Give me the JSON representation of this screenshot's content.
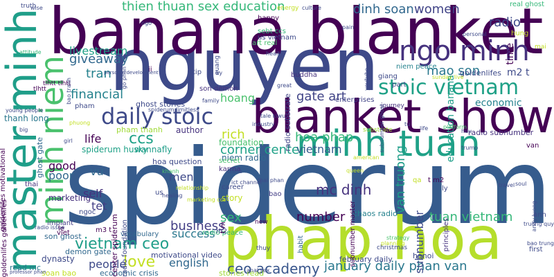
{
  "palette": {
    "dark_purple": "#440154",
    "indigo": "#46327e",
    "blue": "#365c8d",
    "teal": "#277f8e",
    "green_teal": "#1fa187",
    "green": "#4ac16d",
    "lime": "#a0da39",
    "yellow": "#c2df23"
  },
  "words": [
    {
      "text": "spiderum",
      "color": "#365c8d"
    },
    {
      "text": "nguyen",
      "color": "#3e4a89"
    },
    {
      "text": "banana blanket",
      "color": "#440154"
    },
    {
      "text": "phap hoa",
      "color": "#b5de2b"
    },
    {
      "text": "blanket show",
      "color": "#440154"
    },
    {
      "text": "minh tuan",
      "color": "#1fa187"
    },
    {
      "text": "master minh",
      "color": "#1f9e89"
    },
    {
      "text": "minh niem",
      "color": "#4ac16d"
    },
    {
      "text": "ngo minh",
      "color": "#46327e"
    },
    {
      "text": "daily stoic",
      "color": "#3e4a89"
    },
    {
      "text": "stoic vietnam",
      "color": "#1fa187"
    },
    {
      "text": "thien thuan sex education",
      "color": "#35b779"
    },
    {
      "text": "dinh soan",
      "color": "#31688e"
    },
    {
      "text": "women",
      "color": "#414487"
    },
    {
      "text": "radio",
      "color": "#3e4a89"
    },
    {
      "text": "real ghost",
      "color": "#35b779"
    },
    {
      "text": "livestream",
      "color": "#1fa187"
    },
    {
      "text": "giveaway",
      "color": "#31688e"
    },
    {
      "text": "tran",
      "color": "#26828e"
    },
    {
      "text": "mao son",
      "color": "#2a788e"
    },
    {
      "text": "financial",
      "color": "#26828e"
    },
    {
      "text": "hoang",
      "color": "#4ac16d"
    },
    {
      "text": "gate art",
      "color": "#414487"
    },
    {
      "text": "economic",
      "color": "#26828e"
    },
    {
      "text": "ccs",
      "color": "#1fa187"
    },
    {
      "text": "life",
      "color": "#440154"
    },
    {
      "text": "rich",
      "color": "#c2df23"
    },
    {
      "text": "hoa phap",
      "color": "#35b779"
    },
    {
      "text": "corner center",
      "color": "#1fa187"
    },
    {
      "text": "vietnam",
      "color": "#365c8d"
    },
    {
      "text": "vietnam ceo",
      "color": "#1f9e89"
    },
    {
      "text": "love",
      "color": "#c2df23"
    },
    {
      "text": "people",
      "color": "#3e4a89"
    },
    {
      "text": "english",
      "color": "#31688e"
    },
    {
      "text": "business",
      "color": "#433e85"
    },
    {
      "text": "success",
      "color": "#2a788e"
    },
    {
      "text": "sex",
      "color": "#35b779"
    },
    {
      "text": "number",
      "color": "#440154"
    },
    {
      "text": "mc dinh",
      "color": "#46327e"
    },
    {
      "text": "tuan vietnam",
      "color": "#35b779"
    },
    {
      "text": "ceo academy",
      "color": "#39568c"
    },
    {
      "text": "january daily phan van",
      "color": "#2a788e"
    },
    {
      "text": "van truong",
      "color": "#1f9e89"
    },
    {
      "text": "subnumber",
      "color": "#3e4a89"
    },
    {
      "text": "good",
      "color": "#440154"
    },
    {
      "text": "self",
      "color": "#46327e"
    },
    {
      "text": "vu",
      "color": "#31688e"
    },
    {
      "text": "men",
      "color": "#3e4a89"
    },
    {
      "text": "tet",
      "color": "#433e85"
    },
    {
      "text": "poor",
      "color": "#31688e"
    },
    {
      "text": "education banana",
      "color": "#1f9e89"
    },
    {
      "text": "time",
      "color": "#440154"
    },
    {
      "text": "m2 t",
      "color": "#3e4a89"
    },
    {
      "text": "goldenlifes",
      "color": "#3e4a89"
    },
    {
      "text": "foundation",
      "color": "#4ac16d"
    },
    {
      "text": "niem radio",
      "color": "#31688e"
    },
    {
      "text": "hoa question",
      "color": "#3e4a89"
    },
    {
      "text": "author",
      "color": "#46327e"
    },
    {
      "text": "pham thanh",
      "color": "#a0da39"
    },
    {
      "text": "thanh long",
      "color": "#2a788e"
    },
    {
      "text": "spiderum husky",
      "color": "#1fa187"
    },
    {
      "text": "wannafly",
      "color": "#1f9e89"
    },
    {
      "text": "ghost gate",
      "color": "#31688e"
    },
    {
      "text": "ghost stories",
      "color": "#3e4a89"
    },
    {
      "text": "marketing",
      "color": "#46327e"
    },
    {
      "text": "motivational video",
      "color": "#3e4a89"
    },
    {
      "text": "economic crisis",
      "color": "#31688e"
    },
    {
      "text": "stories read",
      "color": "#a0da39"
    },
    {
      "text": "february daily",
      "color": "#3e4a89"
    },
    {
      "text": "chaos radio",
      "color": "#26828e"
    },
    {
      "text": "hanoi",
      "color": "#3e4a89"
    },
    {
      "text": "radio subnumber",
      "color": "#46327e"
    },
    {
      "text": "dynasty",
      "color": "#3e4a89"
    },
    {
      "text": "read mc",
      "color": "#2a788e"
    },
    {
      "text": "son ghost",
      "color": "#31688e"
    },
    {
      "text": "implant",
      "color": "#433e85"
    },
    {
      "text": "demon gate",
      "color": "#31688e"
    },
    {
      "text": "soan bao",
      "color": "#c2df23"
    },
    {
      "text": "story",
      "color": "#c2df23"
    },
    {
      "text": "career",
      "color": "#3e4a89"
    },
    {
      "text": "karma",
      "color": "#46327e"
    },
    {
      "text": "secret",
      "color": "#4ac16d"
    },
    {
      "text": "vocabulary",
      "color": "#31688e"
    },
    {
      "text": "radio peace",
      "color": "#35b779"
    },
    {
      "text": "bao",
      "color": "#433e85"
    },
    {
      "text": "enterprises",
      "color": "#414487"
    },
    {
      "text": "buddha",
      "color": "#46327e"
    },
    {
      "text": "niem peace",
      "color": "#26828e"
    },
    {
      "text": "art real",
      "color": "#4ac16d"
    },
    {
      "text": "sebt ccs",
      "color": "#35b779"
    },
    {
      "text": "us vietnam",
      "color": "#3e4a89"
    },
    {
      "text": "happy",
      "color": "#440154"
    },
    {
      "text": "truth",
      "color": "#3e4a89"
    },
    {
      "text": "energy",
      "color": "#c2df23"
    },
    {
      "text": "hung",
      "color": "#c2df23"
    },
    {
      "text": "first",
      "color": "#3e4a89"
    },
    {
      "text": "anh",
      "color": "#3e4a89"
    },
    {
      "text": "principles",
      "color": "#46327e"
    },
    {
      "text": "subnumber master",
      "color": "#440154"
    },
    {
      "text": "radio substrate",
      "color": "#414487"
    },
    {
      "text": "son demon",
      "color": "#46327e"
    },
    {
      "text": "pham",
      "color": "#3e4a89"
    },
    {
      "text": "tlhtt",
      "color": "#440154"
    },
    {
      "text": "tlhtt tlhtt",
      "color": "#440154"
    },
    {
      "text": "goldenlifes motivational",
      "color": "#440154"
    },
    {
      "text": "goldenlifes goldenlifes",
      "color": "#440154"
    },
    {
      "text": "center spiderum",
      "color": "#440154"
    },
    {
      "text": "radio foundation",
      "color": "#3e4a89"
    },
    {
      "text": "habit",
      "color": "#31688e"
    },
    {
      "text": "ngoc",
      "color": "#3e4a89"
    },
    {
      "text": "viet",
      "color": "#440154"
    },
    {
      "text": "tip",
      "color": "#3e4a89"
    },
    {
      "text": "us",
      "color": "#3e4a89"
    },
    {
      "text": "m3 t",
      "color": "#440154"
    },
    {
      "text": "new",
      "color": "#440154"
    },
    {
      "text": "ly",
      "color": "#3e4a89"
    },
    {
      "text": "t m2",
      "color": "#440154"
    },
    {
      "text": "qa",
      "color": "#c2df23"
    },
    {
      "text": "thai",
      "color": "#46327e"
    },
    {
      "text": "le",
      "color": "#440154"
    },
    {
      "text": "ii",
      "color": "#440154"
    },
    {
      "text": "giang",
      "color": "#3e4a89"
    },
    {
      "text": "part",
      "color": "#3e4a89"
    },
    {
      "text": "thuy",
      "color": "#3e4a89"
    },
    {
      "text": "journey",
      "color": "#46327e"
    },
    {
      "text": "m2",
      "color": "#3e4a89"
    },
    {
      "text": "t m",
      "color": "#440154"
    },
    {
      "text": "mai",
      "color": "#c2df23"
    },
    {
      "text": "van",
      "color": "#440154"
    },
    {
      "text": "substrate",
      "color": "#a0da39"
    },
    {
      "text": "christmas",
      "color": "#3e4a89"
    },
    {
      "text": "quang",
      "color": "#3e4a89"
    },
    {
      "text": "family",
      "color": "#3e4a89"
    },
    {
      "text": "industry",
      "color": "#3e4a89"
    },
    {
      "text": "spiderum limitless",
      "color": "#3e4a89"
    },
    {
      "text": "tale kiwu",
      "color": "#3e4a89"
    },
    {
      "text": "young people",
      "color": "#3e4a89"
    },
    {
      "text": "personal development",
      "color": "#3e4a89"
    },
    {
      "text": "wise",
      "color": "#3e4a89"
    },
    {
      "text": "ngo",
      "color": "#3e4a89"
    },
    {
      "text": "culture",
      "color": "#3e4a89"
    },
    {
      "text": "pain",
      "color": "#3e4a89"
    },
    {
      "text": "personal",
      "color": "#3e4a89"
    },
    {
      "text": "health",
      "color": "#3e4a89"
    },
    {
      "text": "attitude",
      "color": "#35b779"
    },
    {
      "text": "great",
      "color": "#3e4a89"
    },
    {
      "text": "youtube",
      "color": "#3e4a89"
    },
    {
      "text": "platform",
      "color": "#4ac16d"
    },
    {
      "text": "huu",
      "color": "#3e4a89"
    },
    {
      "text": "trump",
      "color": "#3e4a89"
    },
    {
      "text": "china",
      "color": "#3e4a89"
    },
    {
      "text": "khanh",
      "color": "#4ac16d"
    },
    {
      "text": "american",
      "color": "#c2df23"
    },
    {
      "text": "queen",
      "color": "#c2df23"
    },
    {
      "text": "thai phan",
      "color": "#3e4a89"
    },
    {
      "text": "relationship",
      "color": "#c2df23"
    },
    {
      "text": "healing",
      "color": "#3e4a89"
    },
    {
      "text": "marketing ccs",
      "color": "#c2df23"
    },
    {
      "text": "ict channel",
      "color": "#3e4a89"
    },
    {
      "text": "strategy",
      "color": "#4ac16d"
    },
    {
      "text": "planning",
      "color": "#c2df23"
    },
    {
      "text": "truong quy",
      "color": "#3e4a89"
    },
    {
      "text": "bao trung",
      "color": "#3e4a89"
    },
    {
      "text": "andy luong",
      "color": "#3e4a89"
    },
    {
      "text": "professor phan",
      "color": "#3e4a89"
    },
    {
      "text": "radio issue",
      "color": "#3e4a89"
    },
    {
      "text": "big",
      "color": "#3e4a89"
    },
    {
      "text": "girl",
      "color": "#3e4a89"
    },
    {
      "text": "phuong",
      "color": "#c2df23"
    },
    {
      "text": "anal sex",
      "color": "#3e4a89"
    },
    {
      "text": "soul",
      "color": "#3e4a89"
    },
    {
      "text": "travel",
      "color": "#3e4a89"
    },
    {
      "text": "subnumber ghost",
      "color": "#3e4a89"
    },
    {
      "text": "sunday live",
      "color": "#c2df23"
    },
    {
      "text": "life",
      "color": "#3e4a89"
    },
    {
      "text": "go phan",
      "color": "#3e4a89"
    },
    {
      "text": "bao tranh",
      "color": "#3e4a89"
    },
    {
      "text": "ky",
      "color": "#3e4a89"
    },
    {
      "text": "tu",
      "color": "#3e4a89"
    }
  ]
}
